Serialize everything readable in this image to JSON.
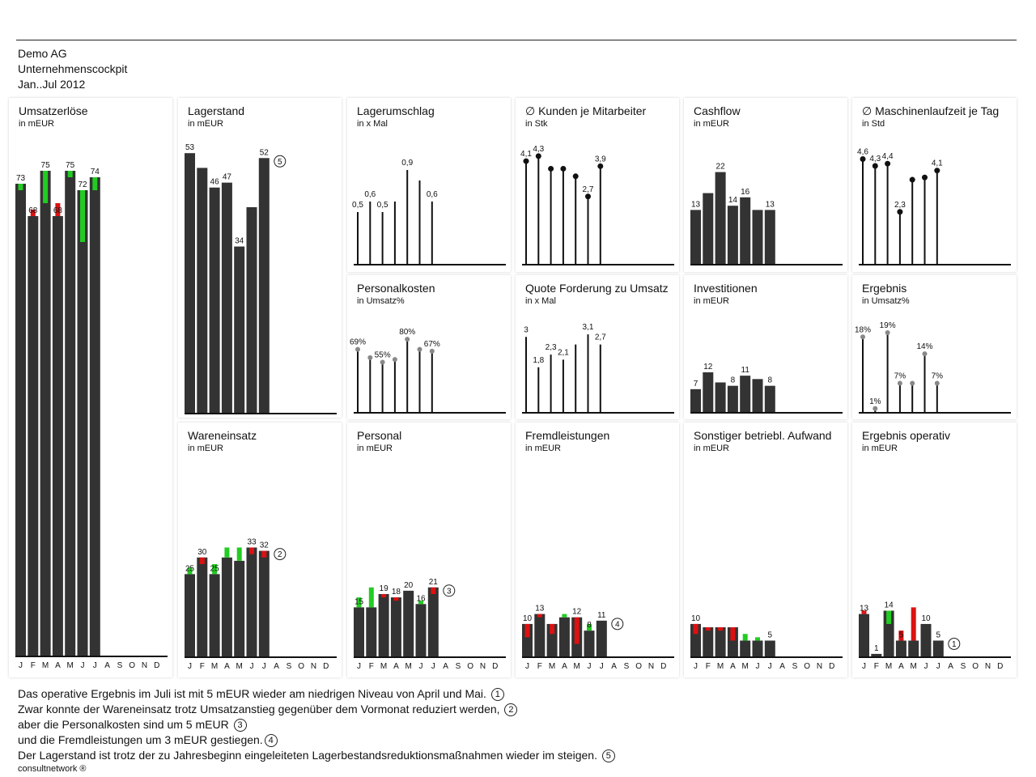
{
  "header": {
    "company": "Demo AG",
    "report": "Unternehmenscockpit",
    "period": "Jan..Jul 2012"
  },
  "months": [
    "J",
    "F",
    "M",
    "A",
    "M",
    "J",
    "J",
    "A",
    "S",
    "O",
    "N",
    "D"
  ],
  "colors": {
    "bar": "#333333",
    "pos": "#22cc22",
    "neg": "#dd1111",
    "dot": "#888888",
    "line": "#111111"
  },
  "chart_data": [
    {
      "id": "umsatz",
      "type": "bar",
      "title": "Umsatzerlöse",
      "unit": "in mEUR",
      "ylim": [
        0,
        80
      ],
      "values": [
        73,
        68,
        75,
        68,
        75,
        72,
        74
      ],
      "prev": [
        72,
        69,
        70,
        70,
        74,
        64,
        72
      ],
      "labels": [
        "73",
        "68",
        "75",
        "68",
        "75",
        "72",
        "74"
      ]
    },
    {
      "id": "lagerstand",
      "type": "bar",
      "title": "Lagerstand",
      "unit": "in mEUR",
      "ylim": [
        0,
        56
      ],
      "values": [
        53,
        50,
        46,
        47,
        34,
        42,
        52
      ],
      "labels": [
        "53",
        "",
        "46",
        "47",
        "34",
        "",
        "52"
      ],
      "note": "5",
      "note_index": 6
    },
    {
      "id": "lagerumschlag",
      "type": "lollipop",
      "title": "Lagerumschlag",
      "unit": "in x Mal",
      "ylim": [
        0,
        1.2
      ],
      "values": [
        0.5,
        0.6,
        0.5,
        0.6,
        0.9,
        0.8,
        0.6
      ],
      "labels": [
        "0,5",
        "0,6",
        "0,5",
        "",
        "0,9",
        "",
        "0,6"
      ],
      "marker": "none"
    },
    {
      "id": "kunden",
      "type": "lollipop",
      "title": "∅ Kunden je Mitarbeiter",
      "unit": "in Stk",
      "ylim": [
        0,
        5
      ],
      "values": [
        4.1,
        4.3,
        3.8,
        3.8,
        3.5,
        2.7,
        3.9
      ],
      "labels": [
        "4,1",
        "4,3",
        "",
        "",
        "",
        "2,7",
        "3,9"
      ],
      "marker": "black"
    },
    {
      "id": "cashflow",
      "type": "bar",
      "title": "Cashflow",
      "unit": "in mEUR",
      "ylim": [
        0,
        30
      ],
      "values": [
        13,
        17,
        22,
        14,
        16,
        13,
        13
      ],
      "labels": [
        "13",
        "",
        "22",
        "14",
        "16",
        "",
        "13"
      ]
    },
    {
      "id": "maschinen",
      "type": "lollipop",
      "title": "∅ Maschinenlaufzeit je Tag",
      "unit": "in Std",
      "ylim": [
        0,
        5.5
      ],
      "values": [
        4.6,
        4.3,
        4.4,
        2.3,
        3.7,
        3.8,
        4.1
      ],
      "labels": [
        "4,6",
        "4,3",
        "4,4",
        "2,3",
        "",
        "",
        "4,1"
      ],
      "marker": "black"
    },
    {
      "id": "personalkosten",
      "type": "lollipop",
      "title": "Personalkosten",
      "unit": "in Umsatz%",
      "ylim": [
        0,
        110
      ],
      "values": [
        69,
        60,
        55,
        58,
        80,
        69,
        67
      ],
      "labels": [
        "69%",
        "",
        "55%",
        "",
        "80%",
        "",
        "67%"
      ],
      "marker": "gray"
    },
    {
      "id": "quote",
      "type": "lollipop",
      "title": "Quote Forderung zu Umsatz",
      "unit": "in x Mal",
      "ylim": [
        0,
        4
      ],
      "values": [
        3.0,
        1.8,
        2.3,
        2.1,
        2.7,
        3.1,
        2.7
      ],
      "labels": [
        "3",
        "1,8",
        "2,3",
        "2,1",
        "",
        "3,1",
        "2,7"
      ],
      "marker": "none"
    },
    {
      "id": "investitionen",
      "type": "bar",
      "title": "Investitionen",
      "unit": "in mEUR",
      "ylim": [
        0,
        30
      ],
      "values": [
        7,
        12,
        9,
        8,
        11,
        10,
        8
      ],
      "labels": [
        "7",
        "12",
        "",
        "8",
        "11",
        "",
        "8"
      ]
    },
    {
      "id": "ergebnis",
      "type": "lollipop",
      "title": "Ergebnis",
      "unit": "in Umsatz%",
      "ylim": [
        0,
        24
      ],
      "values": [
        18,
        1,
        19,
        7,
        7,
        14,
        7
      ],
      "labels": [
        "18%",
        "1%",
        "19%",
        "7%",
        "",
        "14%",
        "7%"
      ],
      "marker": "gray"
    },
    {
      "id": "wareneinsatz",
      "type": "bar",
      "title": "Wareneinsatz",
      "unit": "in mEUR",
      "ylim": [
        0,
        56
      ],
      "values": [
        25,
        30,
        25,
        30,
        29,
        33,
        32
      ],
      "prev": [
        27,
        28,
        28,
        33,
        33,
        31,
        30
      ],
      "labels": [
        "25",
        "30",
        "25",
        "",
        "",
        "33",
        "32"
      ],
      "note": "2",
      "note_index": 6
    },
    {
      "id": "personal",
      "type": "bar",
      "title": "Personal",
      "unit": "in mEUR",
      "ylim": [
        0,
        56
      ],
      "values": [
        15,
        15,
        19,
        18,
        20,
        16,
        21
      ],
      "prev": [
        18,
        21,
        18,
        17,
        20,
        17,
        19
      ],
      "labels": [
        "15",
        "",
        "19",
        "18",
        "20",
        "16",
        "21"
      ],
      "note": "3",
      "note_index": 6
    },
    {
      "id": "fremdleistungen",
      "type": "bar",
      "title": "Fremdleistungen",
      "unit": "in mEUR",
      "ylim": [
        0,
        56
      ],
      "values": [
        10,
        13,
        10,
        12,
        12,
        8,
        11
      ],
      "prev": [
        6,
        12,
        7,
        13,
        4,
        10,
        11
      ],
      "labels": [
        "10",
        "13",
        "",
        "",
        "12",
        "8",
        "11"
      ],
      "note": "4",
      "note_index": 6
    },
    {
      "id": "sonstiger",
      "type": "bar",
      "title": "Sonstiger betriebl. Aufwand",
      "unit": "in mEUR",
      "ylim": [
        0,
        56
      ],
      "values": [
        10,
        9,
        9,
        9,
        5,
        5,
        5
      ],
      "prev": [
        7,
        8,
        8,
        5,
        7,
        6,
        5
      ],
      "labels": [
        "10",
        "",
        "",
        "",
        "",
        "",
        "5"
      ]
    },
    {
      "id": "ergebnis_operativ",
      "type": "bar",
      "title": "Ergebnis operativ",
      "unit": "in mEUR",
      "ylim": [
        0,
        56
      ],
      "values": [
        13,
        1,
        14,
        5,
        5,
        10,
        5
      ],
      "prev": [
        14,
        1,
        10,
        8,
        15,
        10,
        5
      ],
      "labels": [
        "13",
        "1",
        "14",
        "5",
        "",
        "10",
        "5"
      ],
      "note": "1",
      "note_index": 6
    }
  ],
  "notes": [
    {
      "text": "Das operative Ergebnis im Juli ist mit 5 mEUR wieder am niedrigen Niveau von April und Mai.",
      "ref": "1"
    },
    {
      "text": "Zwar konnte der Wareneinsatz trotz Umsatzanstieg gegenüber dem Vormonat reduziert werden,",
      "ref": "2"
    },
    {
      "text": "aber die Personalkosten sind um 5 mEUR",
      "ref": "3"
    },
    {
      "text": "und die Fremdleistungen um 3 mEUR gestiegen.",
      "ref": "4"
    },
    {
      "text": "Der Lagerstand ist trotz der zu Jahresbeginn eingeleiteten Lagerbestandsreduktionsmaßnahmen wieder im steigen.",
      "ref": "5"
    }
  ],
  "footer": {
    "brand": "consultnetwork ®"
  }
}
